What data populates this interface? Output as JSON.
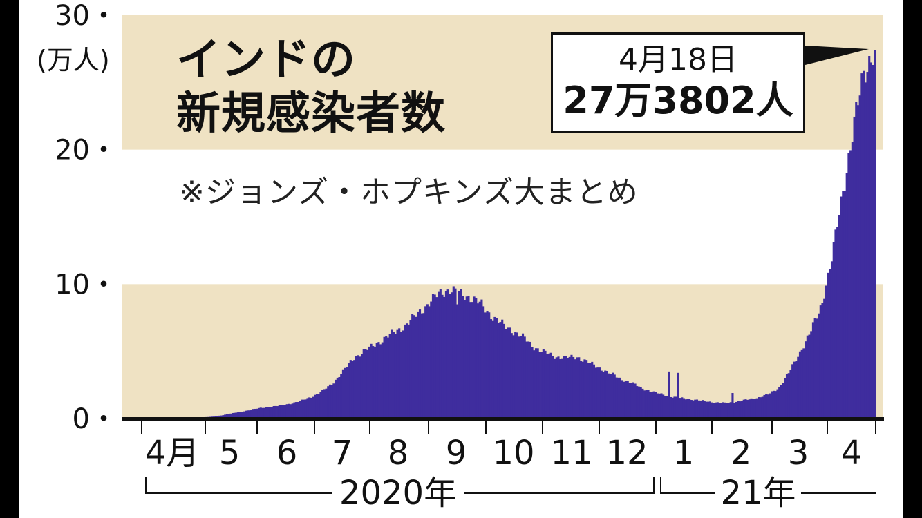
{
  "chart_data": {
    "type": "bar",
    "title": "インドの新規感染者数",
    "title_lines": [
      "インドの",
      "新規感染者数"
    ],
    "note": "※ジョンズ・ホプキンズ大まとめ",
    "y_unit": "(万人)",
    "ylim": [
      0,
      30
    ],
    "y_ticks": [
      "0・",
      "10・",
      "20・",
      "30・"
    ],
    "x_month_labels": [
      "4月",
      "5",
      "6",
      "7",
      "8",
      "9",
      "10",
      "11",
      "12",
      "1",
      "2",
      "3",
      "4"
    ],
    "year_labels": [
      "2020年",
      "21年"
    ],
    "x_range": [
      "2020-03-22",
      "2021-04-18"
    ],
    "annotation": {
      "date": "4月18日",
      "value": "27万3802人",
      "value_number": 27.3802
    },
    "series": [
      {
        "weekly_values": [
          0.005,
          0.01,
          0.02,
          0.03,
          0.05,
          0.08,
          0.1,
          0.15,
          0.3,
          0.45,
          0.6,
          0.75,
          0.85,
          0.95,
          1.1,
          1.3,
          1.6,
          2.0,
          2.6,
          3.5,
          4.5,
          5.0,
          5.5,
          6.0,
          6.5,
          7.0,
          7.8,
          8.5,
          9.3,
          9.6,
          9.3,
          9.0,
          8.5,
          7.6,
          7.0,
          6.5,
          6.0,
          5.3,
          4.9,
          4.6,
          4.5,
          4.6,
          4.2,
          3.8,
          3.4,
          3.0,
          2.7,
          2.3,
          2.0,
          1.8,
          1.6,
          1.5,
          1.4,
          1.3,
          1.2,
          1.15,
          1.25,
          1.4,
          1.55,
          1.8,
          2.3,
          3.5,
          5.0,
          6.5,
          8.5,
          12.0,
          17.0,
          21.5,
          26.0,
          27.4
        ],
        "spikes": [
          {
            "date": "2020-09-07",
            "value": 8.5
          },
          {
            "date": "2020-12-29",
            "value": 3.5
          },
          {
            "date": "2021-01-03",
            "value": 3.4
          },
          {
            "date": "2021-02-01",
            "value": 1.9
          }
        ]
      }
    ],
    "colors": {
      "bars": "#3f2d9e",
      "band": "#efe2c3",
      "axis": "#111111"
    }
  }
}
